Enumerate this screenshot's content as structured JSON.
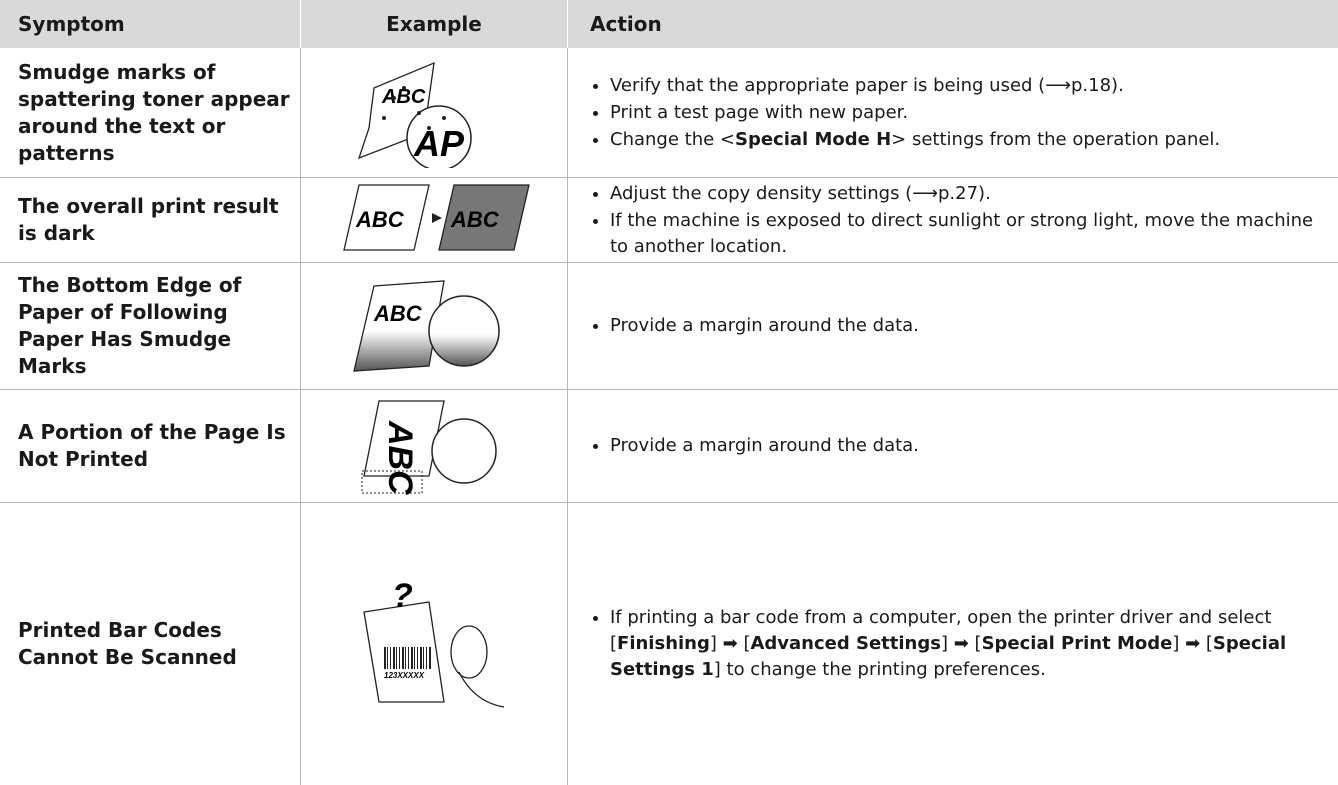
{
  "table": {
    "headers": [
      "Symptom",
      "Example",
      "Action"
    ],
    "rows": [
      {
        "symptom": "Smudge marks of spattering toner appear around the text or patterns",
        "example": [
          "ABC",
          "AP"
        ],
        "actions": [
          [
            {
              "text": "Verify that the appropriate paper is being used (⟶p.18)."
            }
          ],
          [
            {
              "text": "Print a test page with new paper."
            }
          ],
          [
            {
              "text": "Change the <"
            },
            {
              "text": "Special Mode H",
              "bold": true
            },
            {
              "text": "> settings from the operation panel."
            }
          ]
        ]
      },
      {
        "symptom": "The overall print result is dark",
        "example": [
          "ABC",
          "ABC"
        ],
        "actions": [
          [
            {
              "text": "Adjust the copy density settings (⟶p.27)."
            }
          ],
          [
            {
              "text": "If the machine is exposed to direct sunlight or strong light, move the machine to another location."
            }
          ]
        ]
      },
      {
        "symptom": "The Bottom Edge of Paper of Following Paper Has Smudge Marks",
        "example": [
          "ABC"
        ],
        "actions": [
          [
            {
              "text": "Provide a margin around the data."
            }
          ]
        ]
      },
      {
        "symptom": "A Portion of the Page Is Not Printed",
        "example": [
          "ABC"
        ],
        "actions": [
          [
            {
              "text": "Provide a margin around the data."
            }
          ]
        ]
      },
      {
        "symptom": "Printed Bar Codes Cannot Be Scanned",
        "example": [
          "?",
          "123XXXXX"
        ],
        "actions": [
          [
            {
              "text": "If printing a bar code from a computer, open the printer driver and select ["
            },
            {
              "text": "Finishing",
              "bold": true
            },
            {
              "text": "] ➡ ["
            },
            {
              "text": "Advanced Settings",
              "bold": true
            },
            {
              "text": "] ➡ ["
            },
            {
              "text": "Special Print Mode",
              "bold": true
            },
            {
              "text": "] ➡ ["
            },
            {
              "text": "Special Settings 1",
              "bold": true
            },
            {
              "text": "] to change the printing preferences."
            }
          ]
        ]
      }
    ]
  }
}
